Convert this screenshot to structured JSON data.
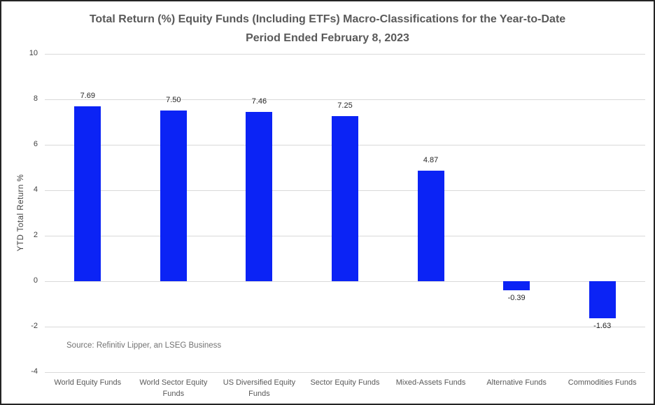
{
  "title": {
    "line1": "Total Return (%) Equity Funds (Including ETFs) Macro-Classifications for the Year-to-Date",
    "line2": "Period Ended February 8, 2023"
  },
  "source": "Source: Refinitiv Lipper, an LSEG Business",
  "chart_data": {
    "type": "bar",
    "title": "Total Return (%) Equity Funds (Including ETFs) Macro-Classifications for the Year-to-Date Period Ended February 8, 2023",
    "categories": [
      "World Equity Funds",
      "World Sector Equity Funds",
      "US Diversified Equity Funds",
      "Sector Equity Funds",
      "Mixed-Assets Funds",
      "Alternative Funds",
      "Commodities Funds"
    ],
    "values": [
      7.69,
      7.5,
      7.46,
      7.25,
      4.87,
      -0.39,
      -1.63
    ],
    "labels": [
      "7.69",
      "7.50",
      "7.46",
      "7.25",
      "4.87",
      "-0.39",
      "-1.63"
    ],
    "xlabel": "",
    "ylabel": "YTD Total Return %",
    "ylim": [
      -4,
      10
    ],
    "yticks": [
      10,
      8,
      6,
      4,
      2,
      0,
      -2,
      -4
    ],
    "grid": true,
    "legend": "none",
    "bar_color": "#0b23f5",
    "gridline_color": "#d9d9d9"
  }
}
